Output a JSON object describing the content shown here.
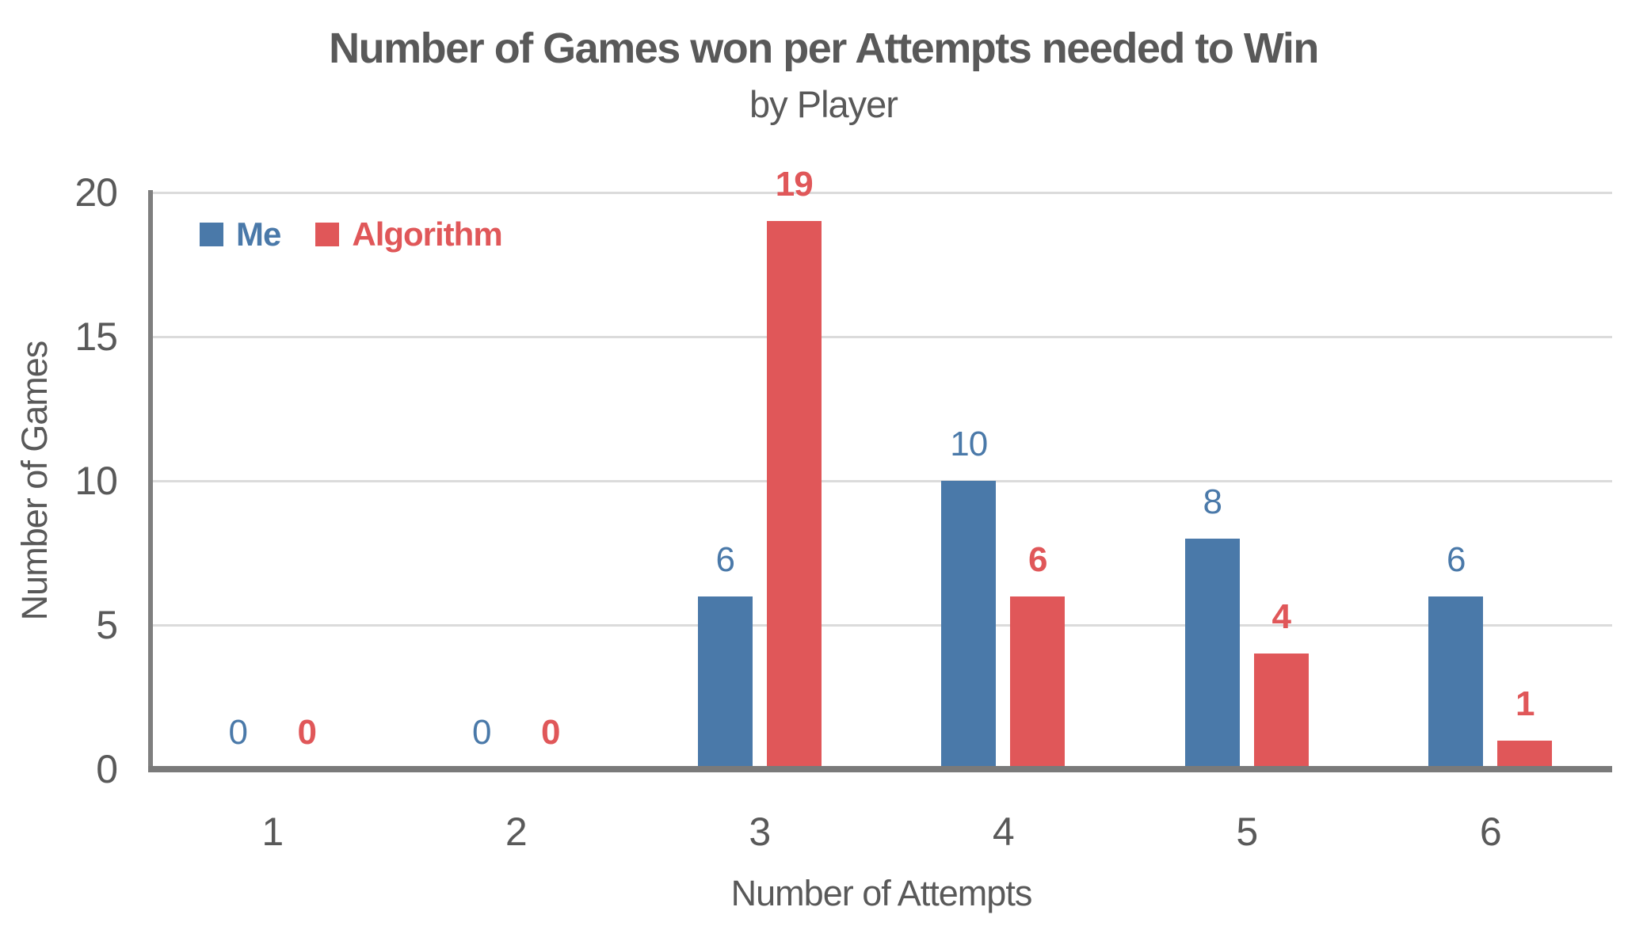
{
  "chart_data": {
    "type": "bar",
    "title": "Number of Games won per Attempts needed to Win",
    "subtitle": "by Player",
    "xlabel": "Number of Attempts",
    "ylabel": "Number of Games",
    "categories": [
      "1",
      "2",
      "3",
      "4",
      "5",
      "6"
    ],
    "series": [
      {
        "name": "Me",
        "color": "#4A79A9",
        "label_weight": "400",
        "values": [
          0,
          0,
          6,
          10,
          8,
          6
        ]
      },
      {
        "name": "Algorithm",
        "color": "#E05759",
        "label_weight": "700",
        "values": [
          0,
          0,
          19,
          6,
          4,
          1
        ]
      }
    ],
    "yticks": [
      0,
      5,
      10,
      15,
      20
    ],
    "ylim": [
      0,
      20
    ],
    "grid": true,
    "data_labels": true,
    "legend_position": "top-left",
    "colors": {
      "text": "#595959",
      "gridline": "#dbdbdb",
      "axis": "#7f7f7f",
      "background": "#ffffff"
    }
  }
}
